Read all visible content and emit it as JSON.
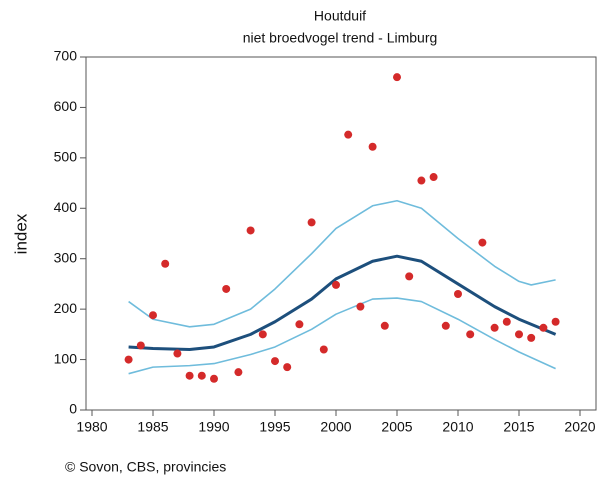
{
  "chart_data": {
    "type": "scatter",
    "title": "Houtduif",
    "subtitle": "niet broedvogel trend - Limburg",
    "y_label": "index",
    "footer": "© Sovon, CBS, provincies",
    "xlim": [
      1980,
      2020
    ],
    "xticks": [
      1980,
      1985,
      1990,
      1995,
      2000,
      2005,
      2010,
      2015,
      2020
    ],
    "ylim": [
      0,
      700
    ],
    "yticks": [
      0,
      100,
      200,
      300,
      400,
      500,
      600,
      700
    ],
    "x": [
      1983,
      1984,
      1985,
      1986,
      1987,
      1988,
      1989,
      1990,
      1991,
      1992,
      1993,
      1994,
      1995,
      1996,
      1997,
      1998,
      1999,
      2000,
      2001,
      2002,
      2003,
      2004,
      2005,
      2006,
      2007,
      2008,
      2009,
      2010,
      2011,
      2012,
      2013,
      2014,
      2015,
      2016,
      2017,
      2018
    ],
    "values": [
      100,
      128,
      188,
      290,
      112,
      68,
      68,
      62,
      240,
      75,
      356,
      150,
      97,
      85,
      170,
      372,
      120,
      248,
      546,
      205,
      522,
      167,
      660,
      265,
      455,
      462,
      167,
      230,
      150,
      332,
      163,
      175,
      150,
      143,
      163,
      175
    ],
    "color": "#d42a2a",
    "lines": [
      {
        "color": "#6fbcdc",
        "x": [
          1983,
          1985,
          1988,
          1990,
          1993,
          1995,
          1998,
          2000,
          2003,
          2005,
          2007,
          2010,
          2013,
          2015,
          2016,
          2018
        ],
        "values": [
          215,
          180,
          165,
          170,
          200,
          240,
          310,
          360,
          405,
          415,
          400,
          340,
          285,
          255,
          248,
          258
        ]
      },
      {
        "color": "#6fbcdc",
        "x": [
          1983,
          1985,
          1988,
          1990,
          1993,
          1995,
          1998,
          2000,
          2003,
          2005,
          2007,
          2010,
          2013,
          2015,
          2018
        ],
        "values": [
          72,
          85,
          88,
          92,
          110,
          125,
          160,
          190,
          220,
          222,
          215,
          180,
          140,
          115,
          82
        ]
      },
      {
        "color": "#1d4f7c",
        "x": [
          1983,
          1985,
          1988,
          1990,
          1993,
          1995,
          1998,
          2000,
          2003,
          2005,
          2007,
          2010,
          2013,
          2015,
          2018
        ],
        "values": [
          125,
          122,
          120,
          125,
          150,
          175,
          220,
          260,
          295,
          305,
          295,
          250,
          205,
          180,
          150
        ]
      }
    ]
  }
}
